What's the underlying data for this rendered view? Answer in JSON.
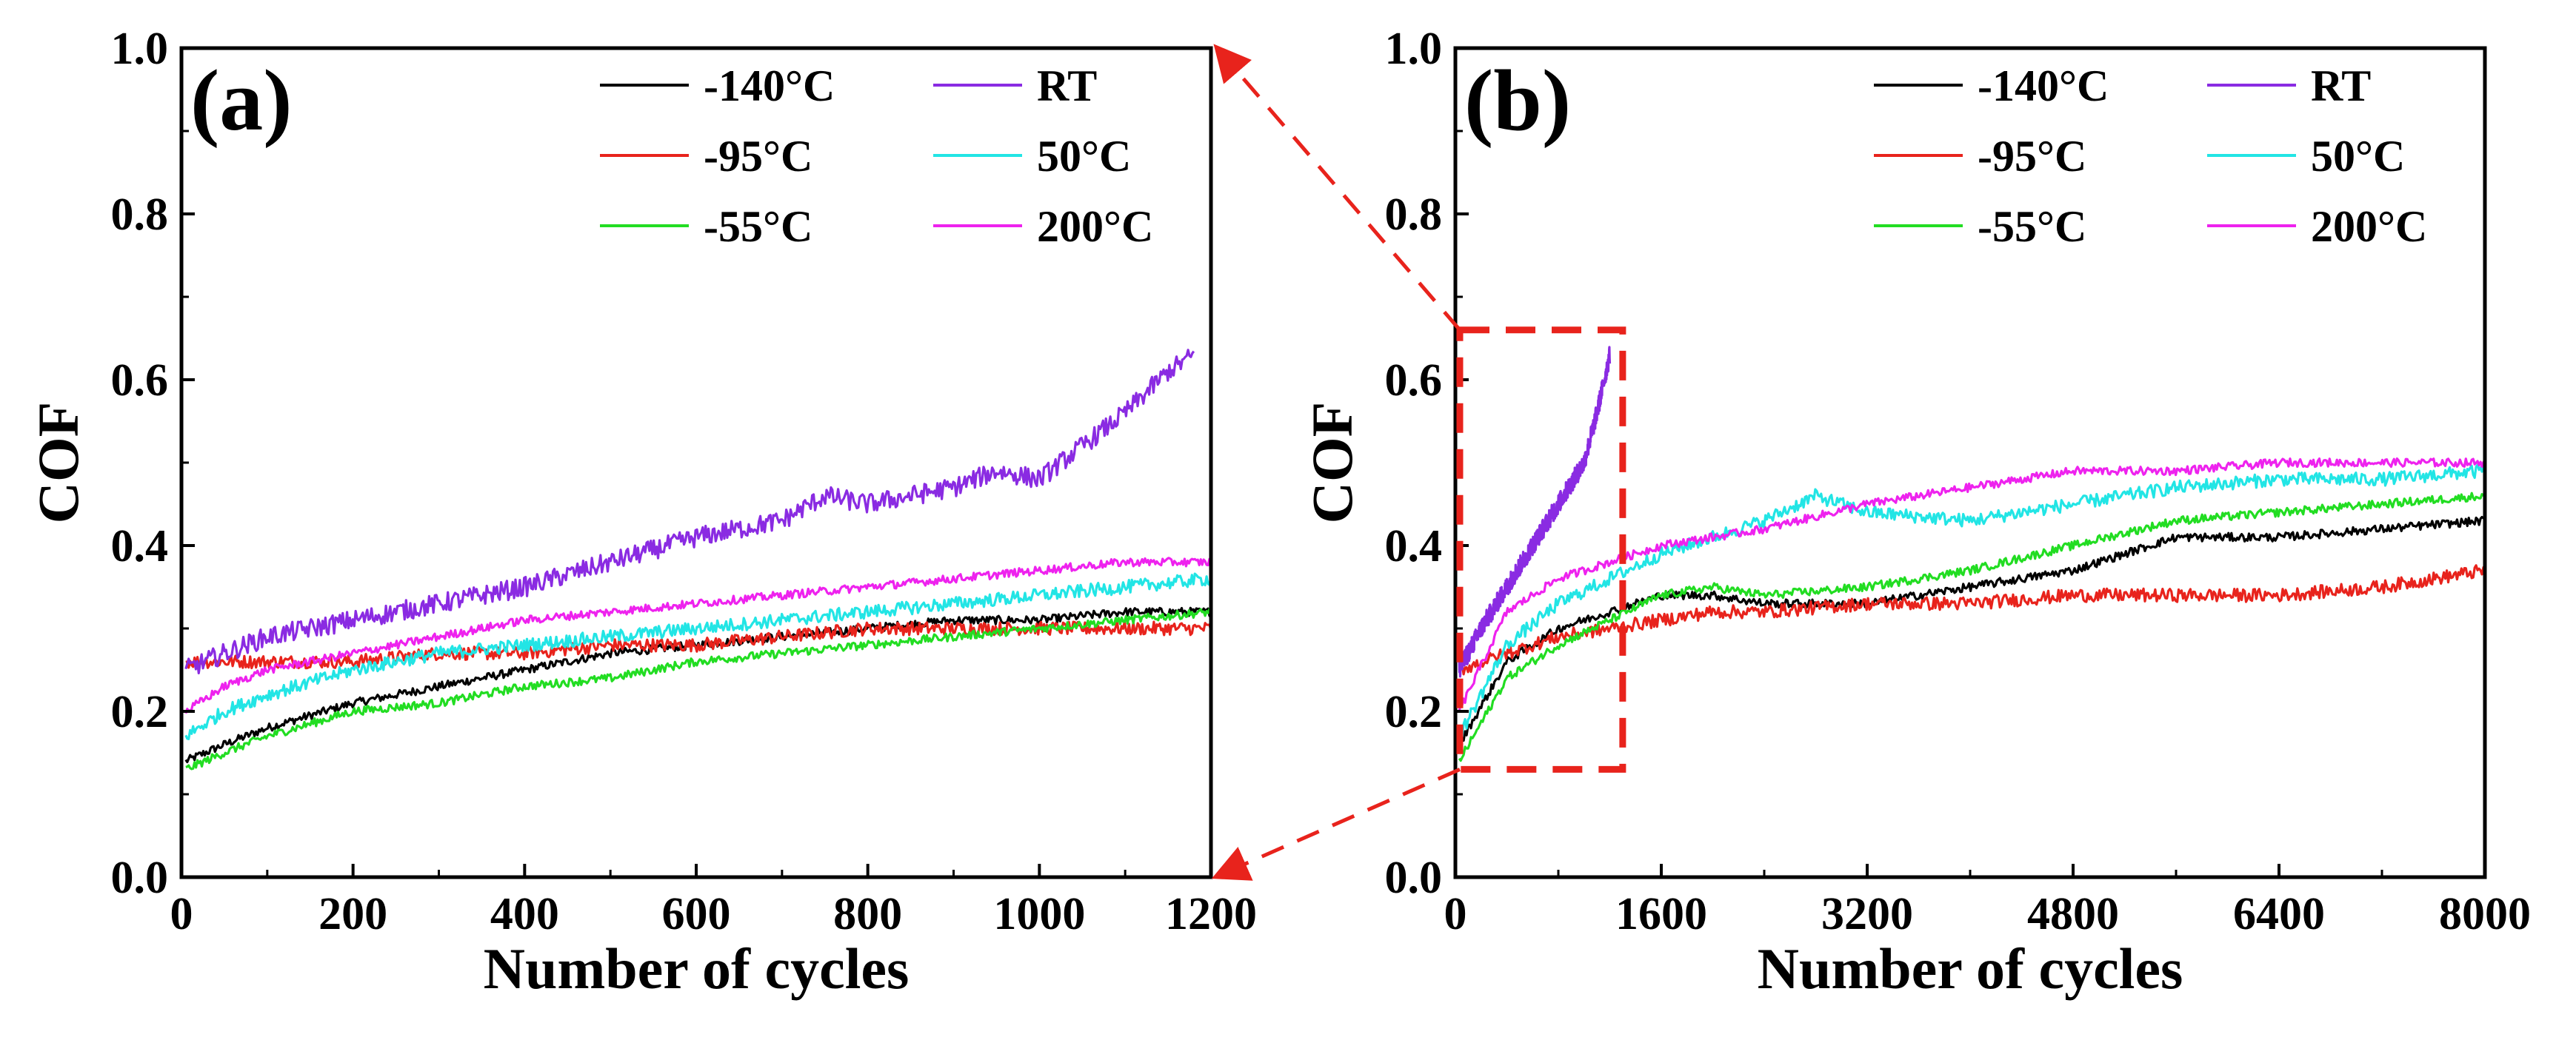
{
  "figure": {
    "panel_labels": [
      "(a)",
      "(b)"
    ],
    "xlabel": "Number of cycles",
    "ylabel": "COF",
    "zoom_indicator_color": "#e8231c"
  },
  "series_style": [
    {
      "name": "-140°C",
      "color": "#000000"
    },
    {
      "name": "-95°C",
      "color": "#e8231c"
    },
    {
      "name": "-55°C",
      "color": "#22dd22"
    },
    {
      "name": "RT",
      "color": "#8a2be2"
    },
    {
      "name": "50°C",
      "color": "#22e5e5"
    },
    {
      "name": "200°C",
      "color": "#ee22ee"
    }
  ],
  "chart_data": [
    {
      "type": "line",
      "panel": "(a)",
      "title": "",
      "xlabel": "Number of cycles",
      "ylabel": "COF",
      "xlim": [
        0,
        1200
      ],
      "ylim": [
        0,
        1.0
      ],
      "xticks": [
        "0",
        "200",
        "400",
        "600",
        "800",
        "1000",
        "1200"
      ],
      "yticks": [
        "0.0",
        "0.2",
        "0.4",
        "0.6",
        "0.8",
        "1.0"
      ],
      "grid": false,
      "legend_position": "top-right",
      "series": [
        {
          "name": "-140°C",
          "x": [
            5,
            50,
            100,
            200,
            300,
            400,
            500,
            600,
            700,
            800,
            900,
            1000,
            1100,
            1200
          ],
          "y": [
            0.14,
            0.16,
            0.18,
            0.21,
            0.23,
            0.25,
            0.27,
            0.28,
            0.29,
            0.3,
            0.31,
            0.31,
            0.32,
            0.32
          ]
        },
        {
          "name": "-95°C",
          "x": [
            5,
            50,
            100,
            200,
            300,
            400,
            500,
            600,
            700,
            800,
            900,
            1000,
            1100,
            1200
          ],
          "y": [
            0.26,
            0.26,
            0.26,
            0.26,
            0.27,
            0.27,
            0.28,
            0.28,
            0.29,
            0.3,
            0.3,
            0.3,
            0.3,
            0.3
          ]
        },
        {
          "name": "-55°C",
          "x": [
            5,
            50,
            100,
            200,
            300,
            400,
            500,
            600,
            700,
            800,
            900,
            1000,
            1100,
            1200
          ],
          "y": [
            0.13,
            0.15,
            0.17,
            0.2,
            0.21,
            0.23,
            0.24,
            0.26,
            0.27,
            0.28,
            0.29,
            0.3,
            0.31,
            0.32
          ]
        },
        {
          "name": "RT",
          "x": [
            5,
            50,
            100,
            200,
            300,
            400,
            500,
            600,
            700,
            750,
            800,
            900,
            950,
            1000,
            1100,
            1150,
            1180
          ],
          "y": [
            0.25,
            0.27,
            0.29,
            0.31,
            0.33,
            0.35,
            0.38,
            0.41,
            0.43,
            0.46,
            0.45,
            0.47,
            0.49,
            0.48,
            0.56,
            0.61,
            0.63
          ]
        },
        {
          "name": "50°C",
          "x": [
            5,
            50,
            100,
            200,
            300,
            400,
            500,
            600,
            700,
            800,
            900,
            1000,
            1100,
            1200
          ],
          "y": [
            0.17,
            0.2,
            0.22,
            0.25,
            0.27,
            0.28,
            0.29,
            0.3,
            0.31,
            0.32,
            0.33,
            0.34,
            0.35,
            0.36
          ]
        },
        {
          "name": "200°C",
          "x": [
            5,
            50,
            100,
            200,
            300,
            400,
            500,
            600,
            700,
            800,
            900,
            1000,
            1100,
            1200
          ],
          "y": [
            0.2,
            0.23,
            0.25,
            0.27,
            0.29,
            0.31,
            0.32,
            0.33,
            0.34,
            0.35,
            0.36,
            0.37,
            0.38,
            0.38
          ]
        }
      ]
    },
    {
      "type": "line",
      "panel": "(b)",
      "title": "",
      "xlabel": "Number of cycles",
      "ylabel": "COF",
      "xlim": [
        0,
        8000
      ],
      "ylim": [
        0,
        1.0
      ],
      "xticks": [
        "0",
        "1600",
        "3200",
        "4800",
        "6400",
        "8000"
      ],
      "yticks": [
        "0.0",
        "0.2",
        "0.4",
        "0.6",
        "0.8",
        "1.0"
      ],
      "grid": false,
      "legend_position": "top-right",
      "zoom_box": {
        "x": [
          0,
          1300
        ],
        "y": [
          0.13,
          0.66
        ]
      },
      "series": [
        {
          "name": "-140°C",
          "x": [
            30,
            400,
            800,
            1200,
            1600,
            2000,
            2400,
            3200,
            4000,
            4800,
            5600,
            6400,
            7200,
            8000
          ],
          "y": [
            0.16,
            0.26,
            0.3,
            0.32,
            0.34,
            0.34,
            0.33,
            0.33,
            0.35,
            0.37,
            0.41,
            0.41,
            0.42,
            0.43
          ]
        },
        {
          "name": "-95°C",
          "x": [
            30,
            400,
            800,
            1200,
            1600,
            2000,
            2400,
            3200,
            4000,
            4800,
            5600,
            6400,
            7200,
            8000
          ],
          "y": [
            0.25,
            0.27,
            0.29,
            0.3,
            0.31,
            0.32,
            0.32,
            0.33,
            0.33,
            0.34,
            0.34,
            0.34,
            0.35,
            0.37
          ]
        },
        {
          "name": "-55°C",
          "x": [
            30,
            400,
            800,
            1200,
            1600,
            2000,
            2400,
            3200,
            4000,
            4800,
            5600,
            6400,
            7200,
            8000
          ],
          "y": [
            0.14,
            0.24,
            0.28,
            0.31,
            0.34,
            0.35,
            0.34,
            0.35,
            0.37,
            0.4,
            0.43,
            0.44,
            0.45,
            0.46
          ]
        },
        {
          "name": "RT",
          "x": [
            30,
            200,
            400,
            600,
            800,
            1000,
            1100,
            1200
          ],
          "y": [
            0.25,
            0.3,
            0.35,
            0.4,
            0.45,
            0.5,
            0.56,
            0.63
          ]
        },
        {
          "name": "50°C",
          "x": [
            30,
            400,
            800,
            1200,
            1600,
            2000,
            2400,
            2800,
            3200,
            4000,
            4800,
            5600,
            6400,
            7200,
            8000
          ],
          "y": [
            0.17,
            0.28,
            0.33,
            0.36,
            0.39,
            0.41,
            0.43,
            0.46,
            0.44,
            0.43,
            0.45,
            0.47,
            0.48,
            0.48,
            0.49
          ]
        },
        {
          "name": "200°C",
          "x": [
            30,
            400,
            800,
            1200,
            1600,
            2000,
            2400,
            3200,
            4000,
            4800,
            5600,
            6400,
            7200,
            8000
          ],
          "y": [
            0.2,
            0.32,
            0.36,
            0.38,
            0.4,
            0.41,
            0.42,
            0.45,
            0.47,
            0.49,
            0.49,
            0.5,
            0.5,
            0.5
          ]
        }
      ]
    }
  ]
}
